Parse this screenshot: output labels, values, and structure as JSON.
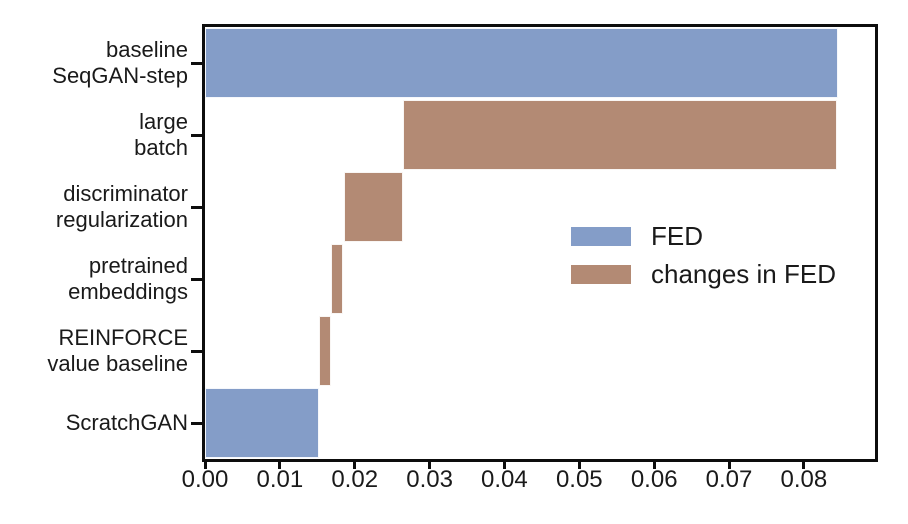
{
  "figure": {
    "background": "#ffffff",
    "title": ""
  },
  "chart_data": {
    "type": "bar",
    "variant": "horizontal-waterfall",
    "title": "",
    "xlabel": "",
    "ylabel": "",
    "grid": false,
    "xlim": [
      0,
      0.0895
    ],
    "x_ticks": [
      {
        "value": 0.0,
        "label": "0.00"
      },
      {
        "value": 0.01,
        "label": "0.01"
      },
      {
        "value": 0.02,
        "label": "0.02"
      },
      {
        "value": 0.03,
        "label": "0.03"
      },
      {
        "value": 0.04,
        "label": "0.04"
      },
      {
        "value": 0.05,
        "label": "0.05"
      },
      {
        "value": 0.06,
        "label": "0.06"
      },
      {
        "value": 0.07,
        "label": "0.07"
      },
      {
        "value": 0.08,
        "label": "0.08"
      }
    ],
    "categories": [
      {
        "name": "baseline SeqGAN-step",
        "label_lines": [
          "baseline",
          "SeqGAN-step"
        ]
      },
      {
        "name": "large batch",
        "label_lines": [
          "large",
          "batch"
        ]
      },
      {
        "name": "discriminator regularization",
        "label_lines": [
          "discriminator",
          "regularization"
        ]
      },
      {
        "name": "pretrained embeddings",
        "label_lines": [
          "pretrained",
          "embeddings"
        ]
      },
      {
        "name": "REINFORCE value baseline",
        "label_lines": [
          "REINFORCE",
          "value baseline"
        ]
      },
      {
        "name": "ScratchGAN",
        "label_lines": [
          "ScratchGAN"
        ]
      }
    ],
    "bars": [
      {
        "row": 0,
        "category": "baseline SeqGAN-step",
        "series": "FED",
        "start": 0.0,
        "end": 0.0845
      },
      {
        "row": 1,
        "category": "large batch",
        "series": "changes in FED",
        "start": 0.0264,
        "end": 0.0845
      },
      {
        "row": 2,
        "category": "discriminator regularization",
        "series": "changes in FED",
        "start": 0.0185,
        "end": 0.0264
      },
      {
        "row": 3,
        "category": "pretrained embeddings",
        "series": "changes in FED",
        "start": 0.0168,
        "end": 0.0185
      },
      {
        "row": 4,
        "category": "REINFORCE value baseline",
        "series": "changes in FED",
        "start": 0.0152,
        "end": 0.0168
      },
      {
        "row": 5,
        "category": "ScratchGAN",
        "series": "FED",
        "start": 0.0,
        "end": 0.0152
      }
    ],
    "series_colors": {
      "FED": "#849dc8",
      "changes in FED": "#b38a74"
    },
    "legend": {
      "position": "center-right-inside",
      "frame": false,
      "entries": [
        {
          "label": "FED",
          "color": "#849dc8"
        },
        {
          "label": "changes in FED",
          "color": "#b38a74"
        }
      ]
    },
    "colors": {
      "spine": "#0d0d0d",
      "text": "#1a1a1a",
      "bar_edge": "#ffffff"
    }
  }
}
